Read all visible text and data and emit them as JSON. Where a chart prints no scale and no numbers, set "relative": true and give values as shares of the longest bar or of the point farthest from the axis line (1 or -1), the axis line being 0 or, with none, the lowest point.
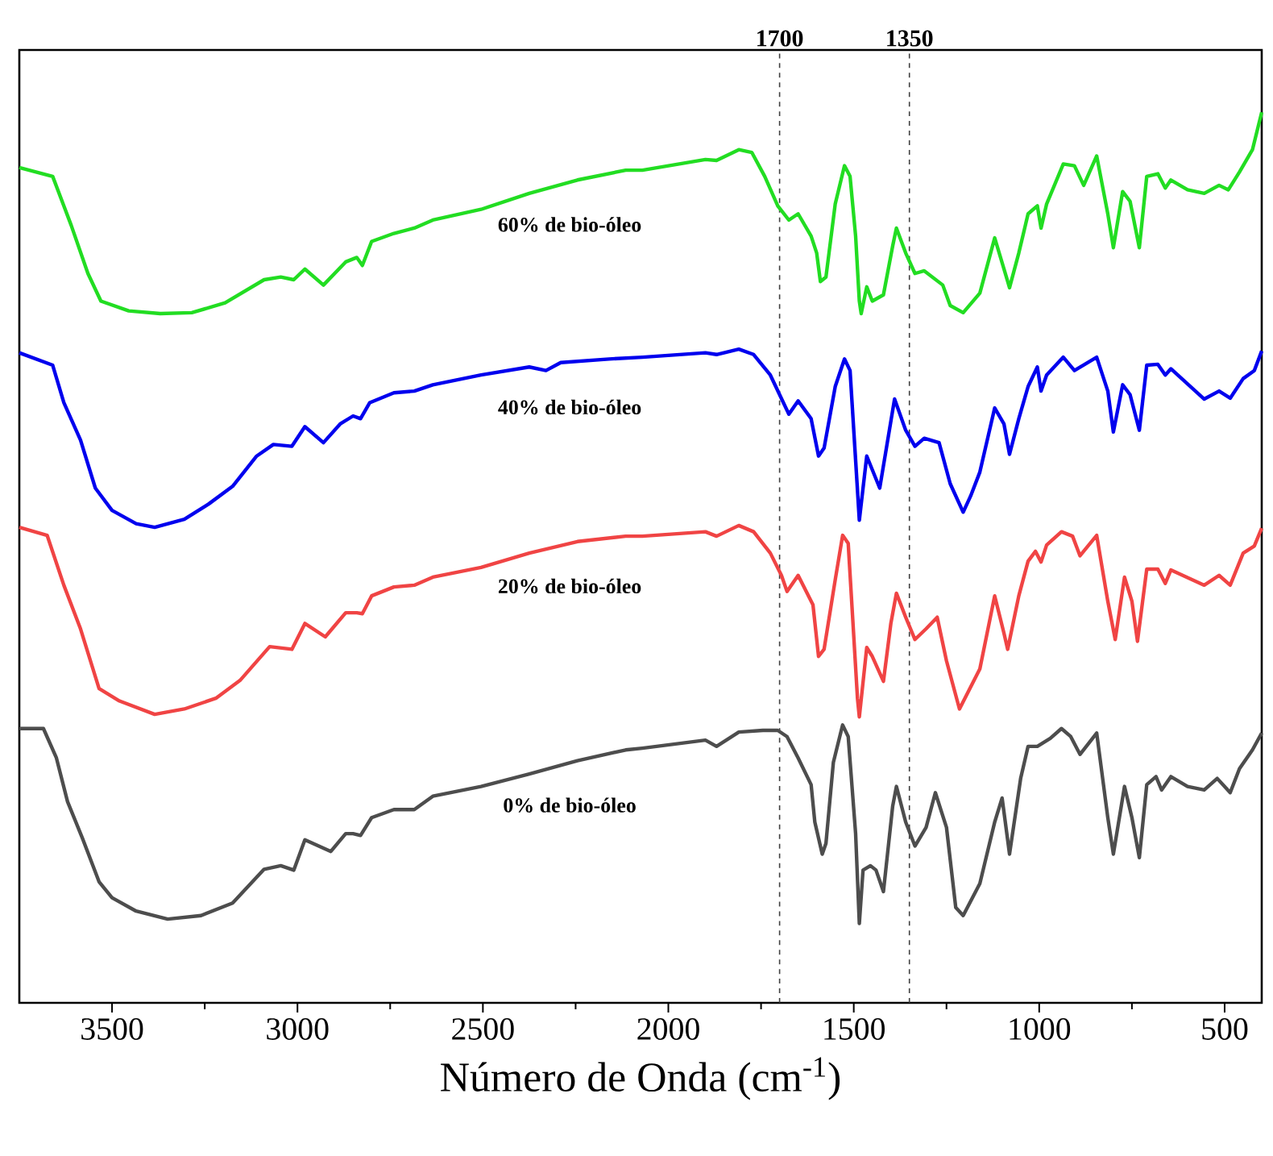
{
  "chart_data": {
    "type": "line",
    "relative": true,
    "xlabel": "Número de Onda (cm$^{-1}$)",
    "xlim": [
      3750,
      400
    ],
    "xticks": [
      3500,
      3000,
      2500,
      2000,
      1500,
      1000,
      500
    ],
    "tick_labels": "x",
    "line_style": "solid",
    "legend": false,
    "ref_lines": [
      {
        "axis": "x",
        "value": 1700,
        "label": "1700",
        "line_style": "dashed",
        "color": "#404040"
      },
      {
        "axis": "x",
        "value": 1350,
        "label": "1350",
        "line_style": "dashed",
        "color": "#404040"
      }
    ],
    "series": [
      {
        "name": "60% de bio-óleo",
        "color": "#22dd22",
        "x": [
          3750,
          3660,
          3610,
          3565,
          3530,
          3455,
          3370,
          3285,
          3195,
          3090,
          3045,
          3010,
          2980,
          2930,
          2870,
          2840,
          2825,
          2800,
          2740,
          2685,
          2635,
          2505,
          2375,
          2245,
          2115,
          2070,
          1900,
          1870,
          1810,
          1775,
          1740,
          1705,
          1675,
          1650,
          1615,
          1600,
          1590,
          1575,
          1550,
          1525,
          1510,
          1495,
          1485,
          1480,
          1465,
          1450,
          1420,
          1395,
          1385,
          1360,
          1335,
          1310,
          1260,
          1240,
          1205,
          1160,
          1120,
          1095,
          1080,
          1055,
          1030,
          1005,
          995,
          980,
          935,
          905,
          880,
          845,
          815,
          800,
          775,
          755,
          730,
          710,
          680,
          660,
          645,
          600,
          555,
          515,
          490,
          460,
          425,
          400
        ],
        "values": [
          0.938,
          0.928,
          0.873,
          0.819,
          0.788,
          0.777,
          0.774,
          0.775,
          0.786,
          0.812,
          0.815,
          0.812,
          0.824,
          0.806,
          0.832,
          0.837,
          0.828,
          0.855,
          0.864,
          0.87,
          0.879,
          0.891,
          0.909,
          0.924,
          0.935,
          0.935,
          0.947,
          0.946,
          0.958,
          0.955,
          0.928,
          0.895,
          0.879,
          0.886,
          0.861,
          0.842,
          0.81,
          0.815,
          0.897,
          0.94,
          0.928,
          0.861,
          0.788,
          0.774,
          0.804,
          0.788,
          0.795,
          0.85,
          0.87,
          0.842,
          0.819,
          0.822,
          0.806,
          0.783,
          0.775,
          0.797,
          0.859,
          0.824,
          0.803,
          0.842,
          0.886,
          0.895,
          0.87,
          0.897,
          0.942,
          0.94,
          0.918,
          0.951,
          0.886,
          0.848,
          0.911,
          0.9,
          0.848,
          0.928,
          0.931,
          0.915,
          0.924,
          0.913,
          0.909,
          0.918,
          0.913,
          0.933,
          0.958,
          1.0
        ]
      },
      {
        "name": "40% de bio-óleo",
        "color": "#0000ee",
        "x": [
          3750,
          3660,
          3630,
          3585,
          3545,
          3500,
          3435,
          3385,
          3305,
          3240,
          3175,
          3110,
          3065,
          3015,
          2980,
          2930,
          2885,
          2850,
          2830,
          2805,
          2740,
          2685,
          2635,
          2505,
          2375,
          2330,
          2290,
          2160,
          2070,
          1900,
          1870,
          1810,
          1770,
          1725,
          1675,
          1650,
          1615,
          1595,
          1580,
          1550,
          1525,
          1510,
          1485,
          1465,
          1430,
          1390,
          1360,
          1335,
          1310,
          1270,
          1240,
          1205,
          1185,
          1160,
          1120,
          1095,
          1080,
          1055,
          1030,
          1005,
          995,
          980,
          935,
          905,
          845,
          815,
          800,
          775,
          755,
          730,
          710,
          680,
          660,
          645,
          555,
          515,
          485,
          450,
          420,
          400
        ],
        "values": [
          0.73,
          0.716,
          0.674,
          0.632,
          0.578,
          0.553,
          0.538,
          0.534,
          0.543,
          0.56,
          0.58,
          0.614,
          0.627,
          0.625,
          0.647,
          0.629,
          0.65,
          0.659,
          0.656,
          0.674,
          0.685,
          0.687,
          0.694,
          0.705,
          0.714,
          0.71,
          0.719,
          0.723,
          0.725,
          0.73,
          0.728,
          0.734,
          0.728,
          0.705,
          0.661,
          0.676,
          0.656,
          0.614,
          0.623,
          0.692,
          0.723,
          0.71,
          0.542,
          0.614,
          0.578,
          0.678,
          0.643,
          0.625,
          0.634,
          0.629,
          0.583,
          0.551,
          0.569,
          0.596,
          0.668,
          0.65,
          0.616,
          0.656,
          0.692,
          0.714,
          0.687,
          0.705,
          0.725,
          0.71,
          0.725,
          0.687,
          0.641,
          0.694,
          0.683,
          0.643,
          0.716,
          0.717,
          0.705,
          0.712,
          0.678,
          0.687,
          0.679,
          0.701,
          0.71,
          0.732
        ]
      },
      {
        "name": "20% de bio-óleo",
        "color": "#f04444",
        "x": [
          3750,
          3675,
          3630,
          3585,
          3535,
          3480,
          3385,
          3305,
          3220,
          3155,
          3075,
          3015,
          2980,
          2925,
          2870,
          2840,
          2825,
          2800,
          2740,
          2685,
          2635,
          2505,
          2375,
          2245,
          2115,
          2070,
          1900,
          1870,
          1810,
          1770,
          1725,
          1695,
          1680,
          1650,
          1610,
          1595,
          1580,
          1550,
          1530,
          1515,
          1490,
          1485,
          1465,
          1450,
          1420,
          1400,
          1385,
          1360,
          1335,
          1305,
          1275,
          1250,
          1215,
          1160,
          1120,
          1095,
          1085,
          1055,
          1030,
          1010,
          995,
          980,
          940,
          910,
          890,
          845,
          815,
          795,
          770,
          750,
          735,
          710,
          680,
          660,
          645,
          555,
          515,
          485,
          450,
          420,
          400
        ],
        "values": [
          0.534,
          0.525,
          0.469,
          0.42,
          0.353,
          0.339,
          0.324,
          0.33,
          0.342,
          0.362,
          0.4,
          0.397,
          0.426,
          0.411,
          0.438,
          0.438,
          0.437,
          0.457,
          0.467,
          0.469,
          0.478,
          0.489,
          0.505,
          0.518,
          0.524,
          0.524,
          0.529,
          0.524,
          0.536,
          0.529,
          0.505,
          0.48,
          0.462,
          0.48,
          0.447,
          0.389,
          0.397,
          0.475,
          0.525,
          0.516,
          0.342,
          0.321,
          0.399,
          0.389,
          0.361,
          0.426,
          0.46,
          0.433,
          0.408,
          0.42,
          0.433,
          0.384,
          0.33,
          0.375,
          0.457,
          0.415,
          0.397,
          0.457,
          0.496,
          0.507,
          0.495,
          0.514,
          0.529,
          0.524,
          0.502,
          0.525,
          0.451,
          0.408,
          0.478,
          0.451,
          0.406,
          0.487,
          0.487,
          0.471,
          0.486,
          0.469,
          0.48,
          0.469,
          0.505,
          0.513,
          0.533
        ]
      },
      {
        "name": "0% de bio-óleo",
        "color": "#4d4d4d",
        "x": [
          3750,
          3685,
          3650,
          3620,
          3580,
          3535,
          3500,
          3435,
          3350,
          3260,
          3175,
          3090,
          3045,
          3010,
          2980,
          2910,
          2870,
          2850,
          2830,
          2800,
          2740,
          2685,
          2635,
          2505,
          2375,
          2245,
          2115,
          2070,
          1900,
          1870,
          1810,
          1745,
          1705,
          1680,
          1650,
          1615,
          1605,
          1585,
          1575,
          1555,
          1530,
          1515,
          1495,
          1485,
          1475,
          1455,
          1440,
          1420,
          1395,
          1385,
          1360,
          1335,
          1305,
          1280,
          1250,
          1225,
          1205,
          1160,
          1120,
          1100,
          1080,
          1050,
          1030,
          1005,
          970,
          940,
          915,
          890,
          845,
          815,
          800,
          770,
          750,
          730,
          710,
          685,
          670,
          645,
          600,
          555,
          520,
          485,
          460,
          425,
          400
        ],
        "values": [
          0.308,
          0.308,
          0.275,
          0.226,
          0.185,
          0.136,
          0.118,
          0.103,
          0.094,
          0.098,
          0.112,
          0.15,
          0.154,
          0.149,
          0.183,
          0.17,
          0.19,
          0.19,
          0.188,
          0.208,
          0.217,
          0.217,
          0.232,
          0.243,
          0.257,
          0.272,
          0.284,
          0.286,
          0.295,
          0.288,
          0.304,
          0.306,
          0.306,
          0.299,
          0.275,
          0.245,
          0.203,
          0.167,
          0.179,
          0.27,
          0.312,
          0.299,
          0.19,
          0.089,
          0.149,
          0.154,
          0.149,
          0.125,
          0.221,
          0.243,
          0.203,
          0.176,
          0.197,
          0.236,
          0.197,
          0.107,
          0.098,
          0.134,
          0.203,
          0.23,
          0.167,
          0.252,
          0.288,
          0.288,
          0.297,
          0.308,
          0.299,
          0.279,
          0.303,
          0.208,
          0.167,
          0.243,
          0.208,
          0.163,
          0.245,
          0.254,
          0.239,
          0.254,
          0.243,
          0.239,
          0.252,
          0.236,
          0.263,
          0.284,
          0.303
        ]
      }
    ]
  }
}
